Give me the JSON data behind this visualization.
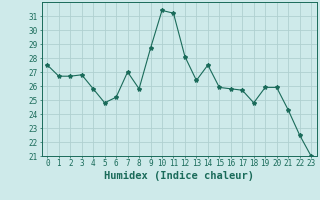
{
  "x": [
    0,
    1,
    2,
    3,
    4,
    5,
    6,
    7,
    8,
    9,
    10,
    11,
    12,
    13,
    14,
    15,
    16,
    17,
    18,
    19,
    20,
    21,
    22,
    23
  ],
  "y": [
    27.5,
    26.7,
    26.7,
    26.8,
    25.8,
    24.8,
    25.2,
    27.0,
    25.8,
    28.7,
    31.4,
    31.2,
    28.1,
    26.4,
    27.5,
    25.9,
    25.8,
    25.7,
    24.8,
    25.9,
    25.9,
    24.3,
    22.5,
    21.0
  ],
  "line_color": "#1a6b5a",
  "marker": "*",
  "marker_size": 3,
  "bg_color": "#ceeaea",
  "grid_major_color": "#b0d0d0",
  "grid_minor_color": "#c0e0e0",
  "xlabel": "Humidex (Indice chaleur)",
  "ylim": [
    21,
    32
  ],
  "yticks": [
    21,
    22,
    23,
    24,
    25,
    26,
    27,
    28,
    29,
    30,
    31
  ],
  "xticks": [
    0,
    1,
    2,
    3,
    4,
    5,
    6,
    7,
    8,
    9,
    10,
    11,
    12,
    13,
    14,
    15,
    16,
    17,
    18,
    19,
    20,
    21,
    22,
    23
  ],
  "tick_color": "#1a6b5a",
  "label_fontsize": 7.5,
  "tick_fontsize": 5.5
}
